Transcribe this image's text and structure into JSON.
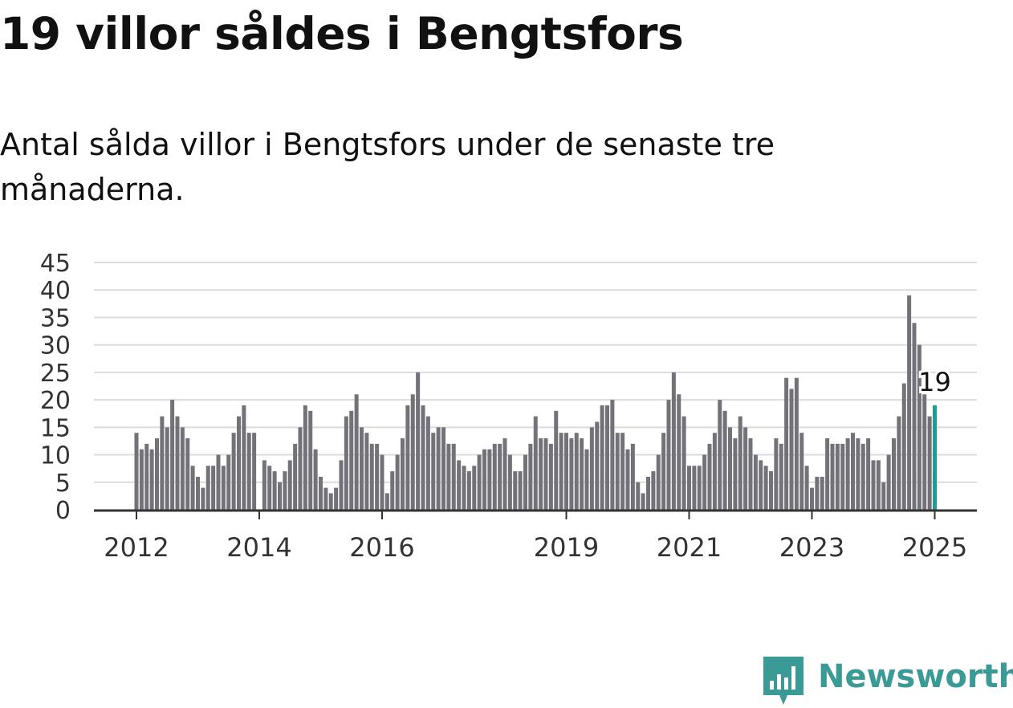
{
  "title": "19 villor såldes i Bengtsfors",
  "subtitle": "Antal sålda villor i Bengtsfors under de senaste tre månaderna.",
  "brand": "Newsworthy",
  "colors": {
    "bar": "#737278",
    "highlight": "#1a9c97",
    "grid": "#dcdcdc",
    "axis": "#333333",
    "brand": "#3a9a95"
  },
  "chart_data": {
    "type": "bar",
    "title": "",
    "xlabel": "",
    "ylabel": "",
    "ylim": [
      0,
      45
    ],
    "yticks": [
      0,
      5,
      10,
      15,
      20,
      25,
      30,
      35,
      40,
      45
    ],
    "xtick_labels": [
      "2012",
      "2014",
      "2016",
      "2019",
      "2021",
      "2023",
      "2025"
    ],
    "xtick_index": [
      0,
      24,
      48,
      84,
      108,
      132,
      156
    ],
    "grid": true,
    "highlight_label": "19",
    "values": [
      14,
      11,
      12,
      11,
      13,
      17,
      15,
      20,
      17,
      15,
      13,
      8,
      6,
      4,
      8,
      8,
      10,
      8,
      10,
      14,
      17,
      19,
      14,
      14,
      0,
      9,
      8,
      7,
      5,
      7,
      9,
      12,
      15,
      19,
      18,
      11,
      6,
      4,
      3,
      4,
      9,
      17,
      18,
      21,
      15,
      14,
      12,
      12,
      10,
      3,
      7,
      10,
      13,
      19,
      21,
      25,
      19,
      17,
      14,
      15,
      15,
      12,
      12,
      9,
      8,
      7,
      8,
      10,
      11,
      11,
      12,
      12,
      13,
      10,
      7,
      7,
      10,
      12,
      17,
      13,
      13,
      12,
      18,
      14,
      14,
      13,
      14,
      13,
      11,
      15,
      16,
      19,
      19,
      20,
      14,
      14,
      11,
      12,
      5,
      3,
      6,
      7,
      10,
      14,
      20,
      25,
      21,
      17,
      8,
      8,
      8,
      10,
      12,
      14,
      20,
      18,
      15,
      13,
      17,
      15,
      13,
      10,
      9,
      8,
      7,
      13,
      12,
      24,
      22,
      24,
      14,
      8,
      4,
      6,
      6,
      13,
      12,
      12,
      12,
      13,
      14,
      13,
      12,
      13,
      9,
      9,
      5,
      10,
      13,
      17,
      23,
      39,
      34,
      30,
      21,
      17,
      19
    ]
  }
}
